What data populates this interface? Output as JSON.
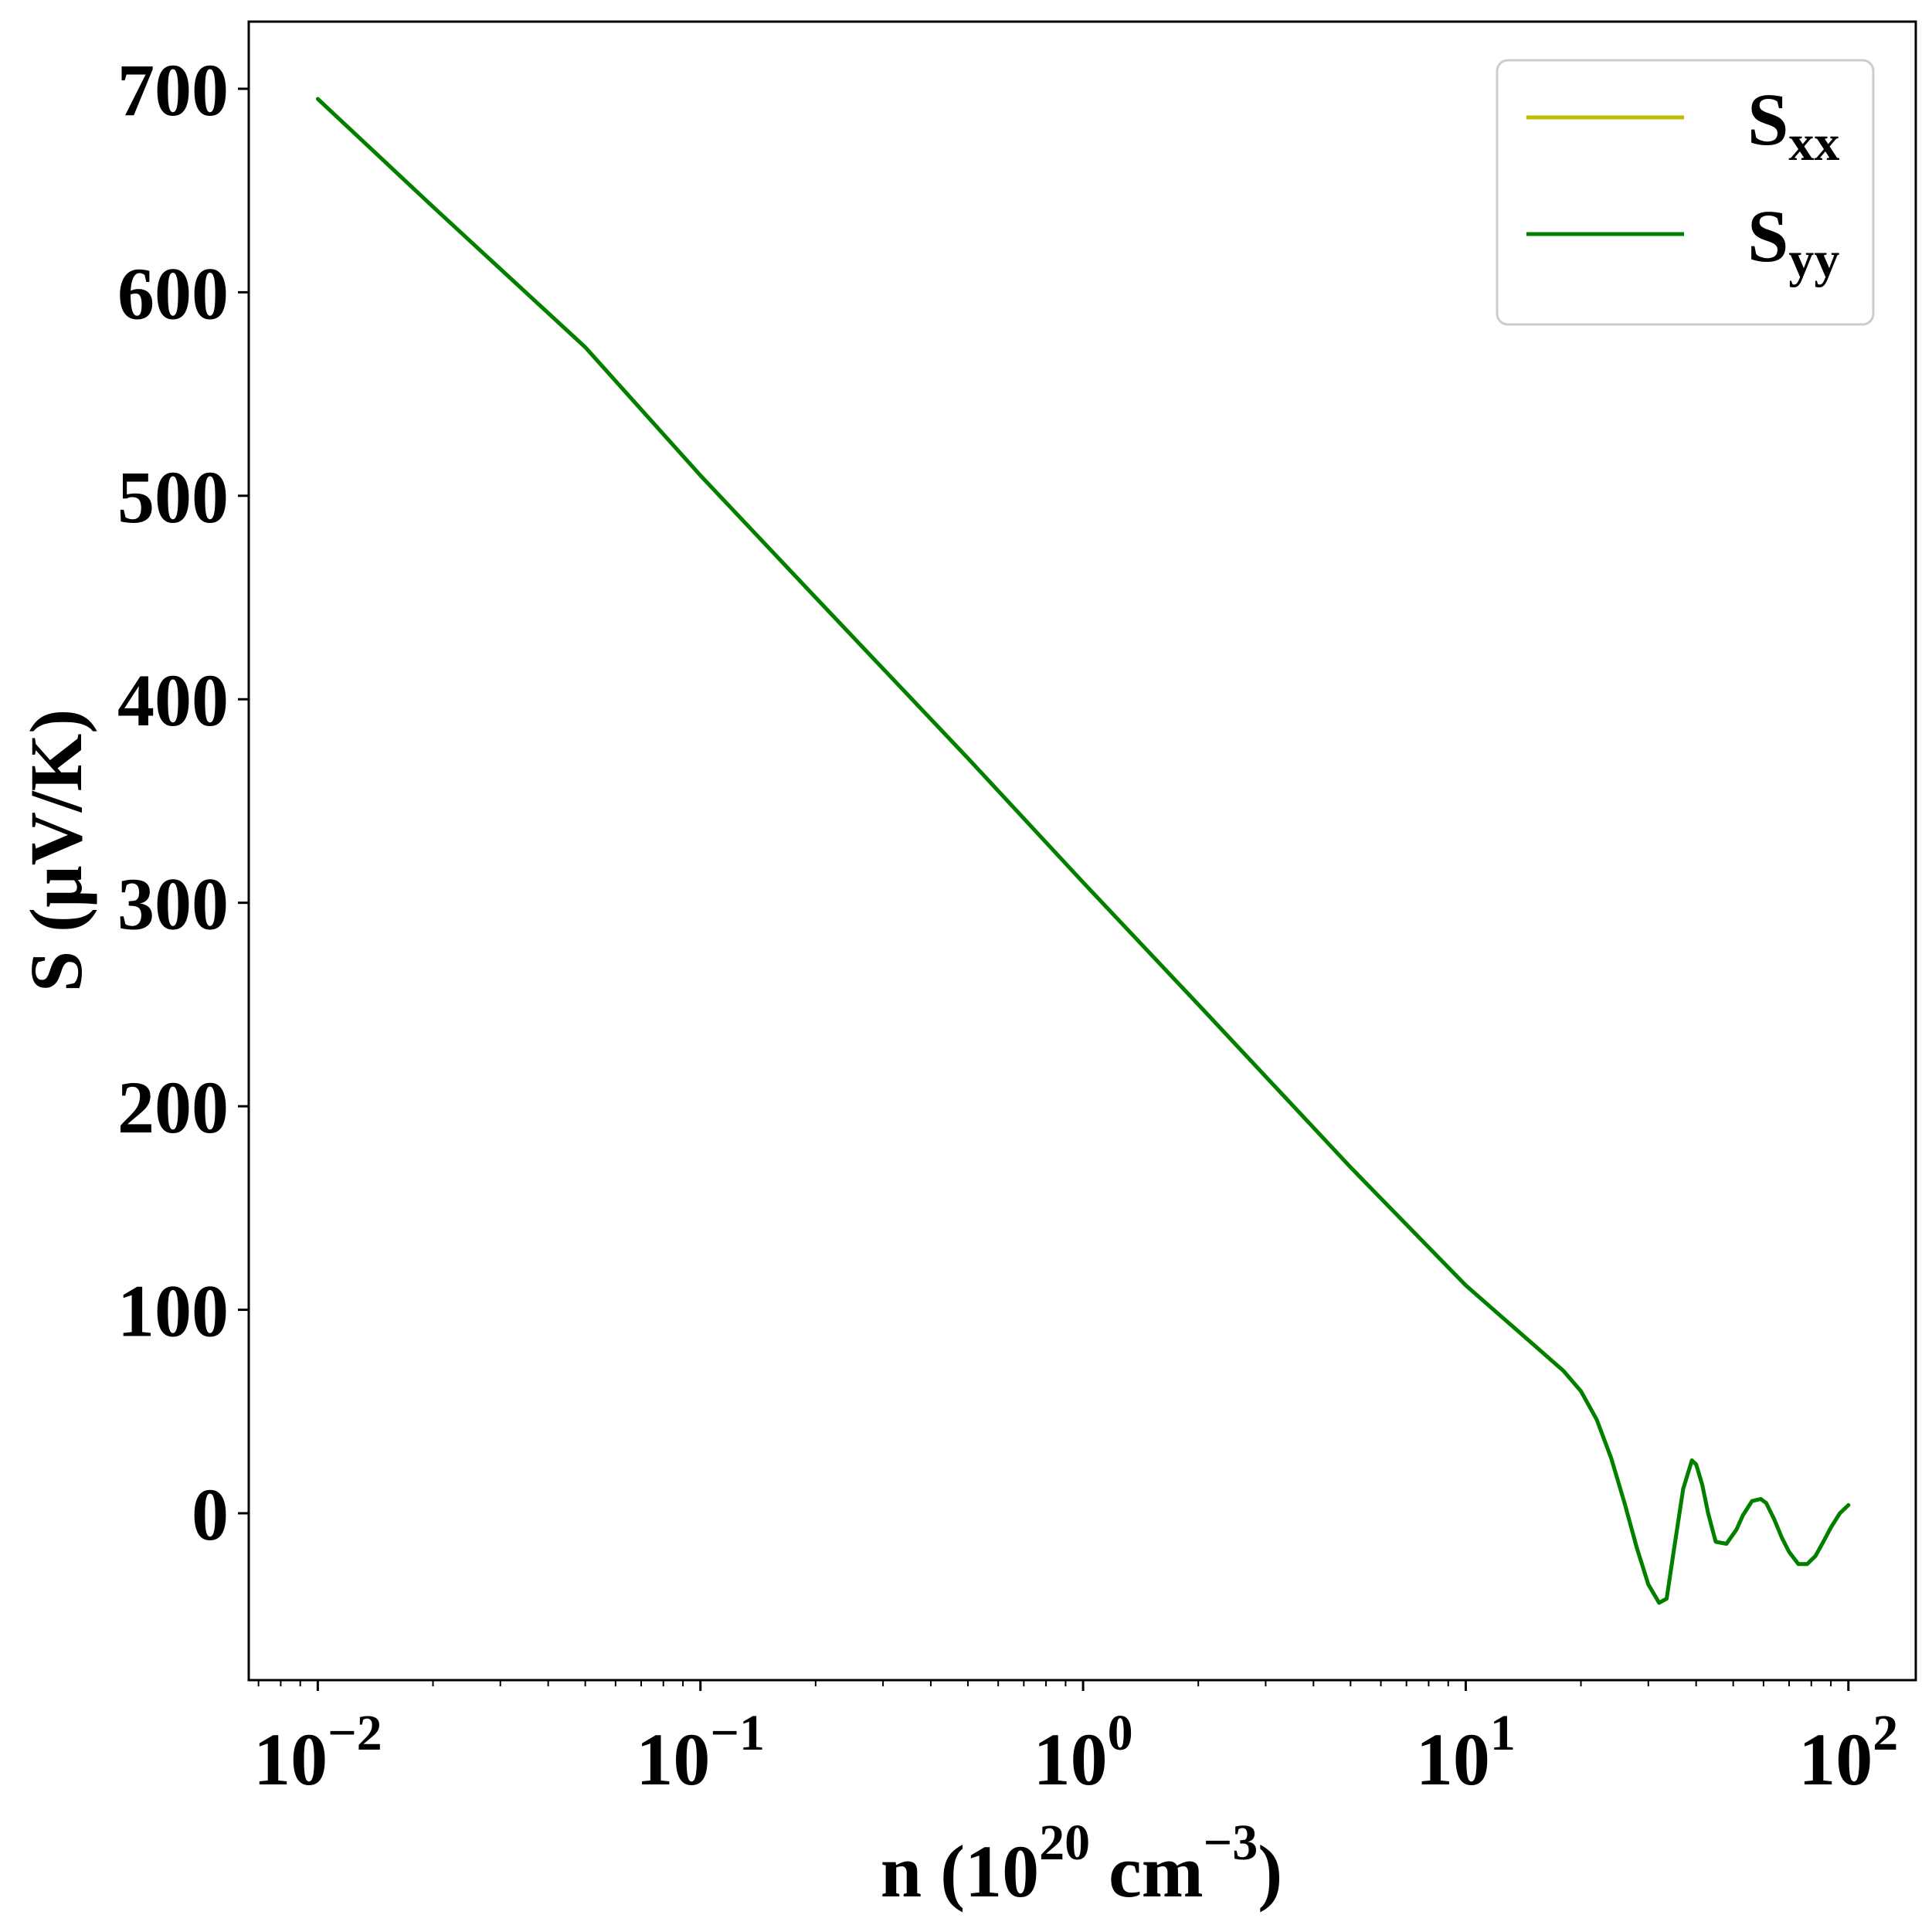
{
  "chart_data": {
    "type": "line",
    "xscale": "log",
    "xlim": [
      0.0066,
      150
    ],
    "ylim": [
      -82,
      733
    ],
    "grid": false,
    "legend_position": "top-right",
    "xlabel": {
      "main": "n (10",
      "sup1": "20",
      "mid": " cm",
      "sup2": "−3",
      "end": ")"
    },
    "ylabel": "S (μV/K)",
    "yticks": [
      {
        "value": 0,
        "label": "0"
      },
      {
        "value": 100,
        "label": "100"
      },
      {
        "value": 200,
        "label": "200"
      },
      {
        "value": 300,
        "label": "300"
      },
      {
        "value": 400,
        "label": "400"
      },
      {
        "value": 500,
        "label": "500"
      },
      {
        "value": 600,
        "label": "600"
      },
      {
        "value": 700,
        "label": "700"
      }
    ],
    "xticks": [
      {
        "value": 0.01,
        "base": "10",
        "exp": "−2"
      },
      {
        "value": 0.1,
        "base": "10",
        "exp": "−1"
      },
      {
        "value": 1,
        "base": "10",
        "exp": "0"
      },
      {
        "value": 10,
        "base": "10",
        "exp": "1"
      },
      {
        "value": 100,
        "base": "10",
        "exp": "2"
      }
    ],
    "series": [
      {
        "name": "S_xx",
        "label_main": "S",
        "label_sub": "xx",
        "color": "#bfbf00",
        "x": [
          0.01,
          0.02,
          0.05,
          0.1,
          0.2,
          0.5,
          1,
          2,
          5,
          10,
          12,
          15,
          18,
          20,
          22,
          24,
          26,
          28,
          30,
          32,
          33.5,
          35,
          37,
          39,
          40,
          41.5,
          43,
          45,
          48,
          51,
          53,
          56,
          59,
          61,
          64,
          67,
          70,
          74,
          78,
          82,
          86,
          90,
          95,
          100
        ],
        "y": [
          695,
          642,
          573,
          510,
          450,
          371,
          310,
          250,
          170,
          112,
          99,
          83,
          70,
          60,
          46,
          27,
          5,
          -17,
          -35,
          -44,
          -42,
          -18,
          12,
          26,
          24,
          14,
          0,
          -14,
          -15,
          -8,
          -1,
          6,
          7,
          5,
          -3,
          -12,
          -19,
          -25,
          -25,
          -21,
          -14,
          -7,
          0,
          4
        ]
      },
      {
        "name": "S_yy",
        "label_main": "S",
        "label_sub": "yy",
        "color": "#008000",
        "x": [
          0.01,
          0.02,
          0.05,
          0.1,
          0.2,
          0.5,
          1,
          2,
          5,
          10,
          12,
          15,
          18,
          20,
          22,
          24,
          26,
          28,
          30,
          32,
          33.5,
          35,
          37,
          39,
          40,
          41.5,
          43,
          45,
          48,
          51,
          53,
          56,
          59,
          61,
          64,
          67,
          70,
          74,
          78,
          82,
          86,
          90,
          95,
          100
        ],
        "y": [
          695,
          642,
          573,
          510,
          450,
          371,
          310,
          250,
          170,
          112,
          99,
          83,
          70,
          60,
          46,
          27,
          5,
          -17,
          -35,
          -44,
          -42,
          -18,
          12,
          26,
          24,
          14,
          0,
          -14,
          -15,
          -8,
          -1,
          6,
          7,
          5,
          -3,
          -12,
          -19,
          -25,
          -25,
          -21,
          -14,
          -7,
          0,
          4
        ]
      }
    ]
  }
}
